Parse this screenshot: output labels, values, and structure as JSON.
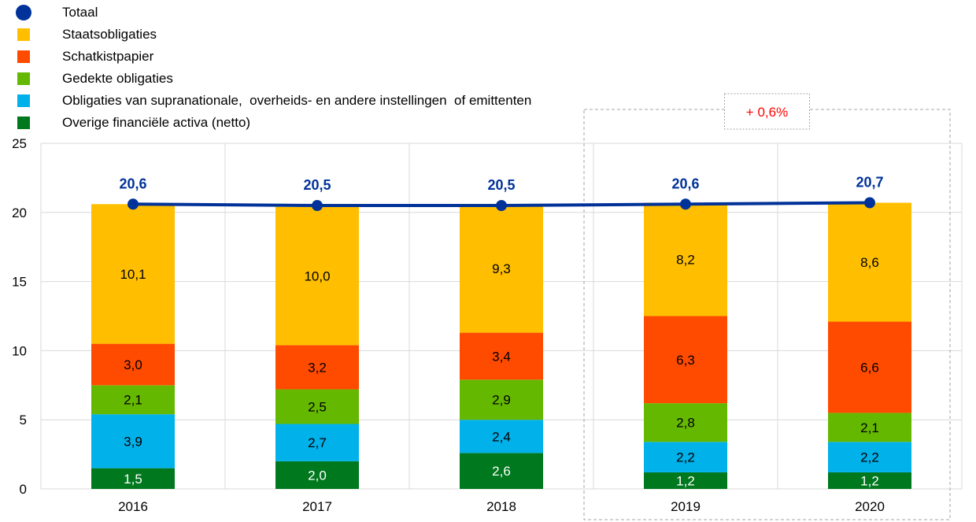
{
  "chart_data": {
    "type": "bar",
    "stacked": true,
    "categories": [
      "2016",
      "2017",
      "2018",
      "2019",
      "2020"
    ],
    "ylim": [
      0,
      25
    ],
    "yticks": [
      "0",
      "5",
      "10",
      "15",
      "20",
      "25"
    ],
    "grid": true,
    "legend_position": "top-left",
    "series": [
      {
        "name": "Overige financiële activa (netto)",
        "color": "#00781E",
        "values": [
          1.5,
          2.0,
          2.6,
          1.2,
          1.2
        ],
        "labels": [
          "1,5",
          "2,0",
          "2,6",
          "1,2",
          "1,2"
        ]
      },
      {
        "name": "Obligaties van supranationale,  overheids- en andere instellingen  of emittenten",
        "color": "#00B1EA",
        "values": [
          3.9,
          2.7,
          2.4,
          2.2,
          2.2
        ],
        "labels": [
          "3,9",
          "2,7",
          "2,4",
          "2,2",
          "2,2"
        ]
      },
      {
        "name": "Gedekte obligaties",
        "color": "#65B800",
        "values": [
          2.1,
          2.5,
          2.9,
          2.8,
          2.1
        ],
        "labels": [
          "2,1",
          "2,5",
          "2,9",
          "2,8",
          "2,1"
        ]
      },
      {
        "name": "Schatkistpapier",
        "color": "#FF4B00",
        "values": [
          3.0,
          3.2,
          3.4,
          6.3,
          6.6
        ],
        "labels": [
          "3,0",
          "3,2",
          "3,4",
          "6,3",
          "6,6"
        ]
      },
      {
        "name": "Staatsobligaties",
        "color": "#FFBF00",
        "values": [
          10.1,
          10.0,
          9.3,
          8.2,
          8.6
        ],
        "labels": [
          "10,1",
          "10,0",
          "9,3",
          "8,2",
          "8,6"
        ]
      }
    ],
    "total": {
      "name": "Totaal",
      "color": "#003299",
      "values": [
        20.6,
        20.5,
        20.5,
        20.6,
        20.7
      ],
      "labels": [
        "20,6",
        "20,5",
        "20,5",
        "20,6",
        "20,7"
      ]
    },
    "annotation": {
      "text": "+ 0,6%",
      "color": "#FF0000",
      "categories": [
        "2019",
        "2020"
      ]
    }
  },
  "legend_order": [
    "total",
    4,
    3,
    2,
    1,
    0
  ]
}
